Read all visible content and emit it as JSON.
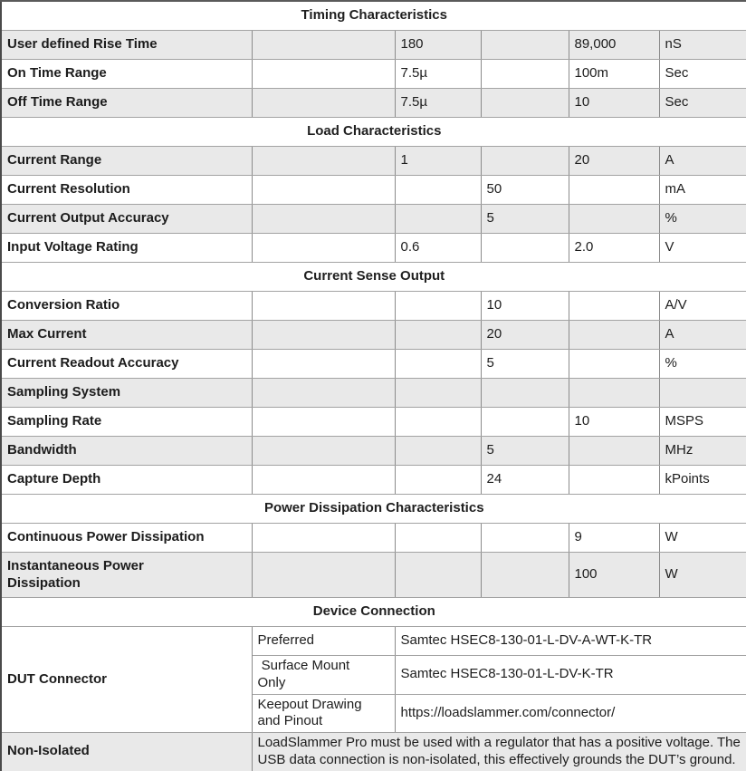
{
  "colors": {
    "section_header_bg": "#9a9c9e",
    "shaded_row_bg": "#e9e9e9",
    "white_row_bg": "#ffffff",
    "text": "#1c1c1c",
    "grid_line_horizontal": "#a3a3a3",
    "grid_line_vertical": "#8b8b8b",
    "outer_border": "#4a4a4a"
  },
  "sections": [
    {
      "title": "Timing Characteristics",
      "rows": [
        {
          "label": "User defined Rise Time",
          "cells": [
            "",
            "180",
            "",
            "89,000"
          ],
          "unit": "nS",
          "shaded": true,
          "tall": false
        },
        {
          "label": "On Time Range",
          "cells": [
            "",
            "7.5µ",
            "",
            "100m"
          ],
          "unit": "Sec",
          "shaded": false,
          "tall": false
        },
        {
          "label": "Off Time Range",
          "cells": [
            "",
            "7.5µ",
            "",
            "10"
          ],
          "unit": "Sec",
          "shaded": true,
          "tall": false
        }
      ]
    },
    {
      "title": "Load Characteristics",
      "rows": [
        {
          "label": "Current Range",
          "cells": [
            "",
            "1",
            "",
            "20"
          ],
          "unit": "A",
          "shaded": true,
          "tall": false
        },
        {
          "label": "Current Resolution",
          "cells": [
            "",
            "",
            "50",
            ""
          ],
          "unit": "mA",
          "shaded": false,
          "tall": false
        },
        {
          "label": "Current Output Accuracy",
          "cells": [
            "",
            "",
            "5",
            ""
          ],
          "unit": "%",
          "shaded": true,
          "tall": false
        },
        {
          "label": "Input Voltage Rating",
          "cells": [
            "",
            "0.6",
            "",
            "2.0"
          ],
          "unit": "V",
          "shaded": false,
          "tall": false
        }
      ]
    },
    {
      "title": "Current Sense Output",
      "rows": [
        {
          "label": "Conversion Ratio",
          "cells": [
            "",
            "",
            "10",
            ""
          ],
          "unit": "A/V",
          "shaded": false,
          "tall": false
        },
        {
          "label": "Max Current",
          "cells": [
            "",
            "",
            "20",
            ""
          ],
          "unit": "A",
          "shaded": true,
          "tall": false
        },
        {
          "label": "Current Readout Accuracy",
          "cells": [
            "",
            "",
            "5",
            ""
          ],
          "unit": "%",
          "shaded": false,
          "tall": false
        },
        {
          "label": "Sampling System",
          "cells": [
            "",
            "",
            "",
            ""
          ],
          "unit": "",
          "shaded": true,
          "tall": false
        },
        {
          "label": "Sampling Rate",
          "cells": [
            "",
            "",
            "",
            "10"
          ],
          "unit": "MSPS",
          "shaded": false,
          "tall": false
        },
        {
          "label": "Bandwidth",
          "cells": [
            "",
            "",
            "5",
            ""
          ],
          "unit": "MHz",
          "shaded": true,
          "tall": false
        },
        {
          "label": "Capture Depth",
          "cells": [
            "",
            "",
            "24",
            ""
          ],
          "unit": "kPoints",
          "shaded": false,
          "tall": false
        }
      ]
    },
    {
      "title": "Power Dissipation Characteristics",
      "rows": [
        {
          "label": "Continuous Power Dissipation",
          "cells": [
            "",
            "",
            "",
            "9"
          ],
          "unit": "W",
          "shaded": false,
          "tall": false
        },
        {
          "label": "Instantaneous Power\nDissipation",
          "cells": [
            "",
            "",
            "",
            "100"
          ],
          "unit": "W",
          "shaded": true,
          "tall": true
        }
      ]
    },
    {
      "title": "Device Connection",
      "connector": {
        "label": "DUT Connector",
        "items": [
          {
            "type": "Preferred",
            "value": "Samtec HSEC8-130-01-L-DV-A-WT-K-TR"
          },
          {
            "type": " Surface Mount\nOnly",
            "value": "Samtec HSEC8-130-01-L-DV-K-TR"
          },
          {
            "type": "Keepout Drawing\nand Pinout",
            "value": "https://loadslammer.com/connector/"
          }
        ]
      },
      "non_isolated": {
        "label": "Non-Isolated",
        "text": "LoadSlammer Pro must be used with a regulator that has a positive voltage. The USB data connection is non-isolated, this effectively grounds the DUT’s ground."
      }
    }
  ]
}
